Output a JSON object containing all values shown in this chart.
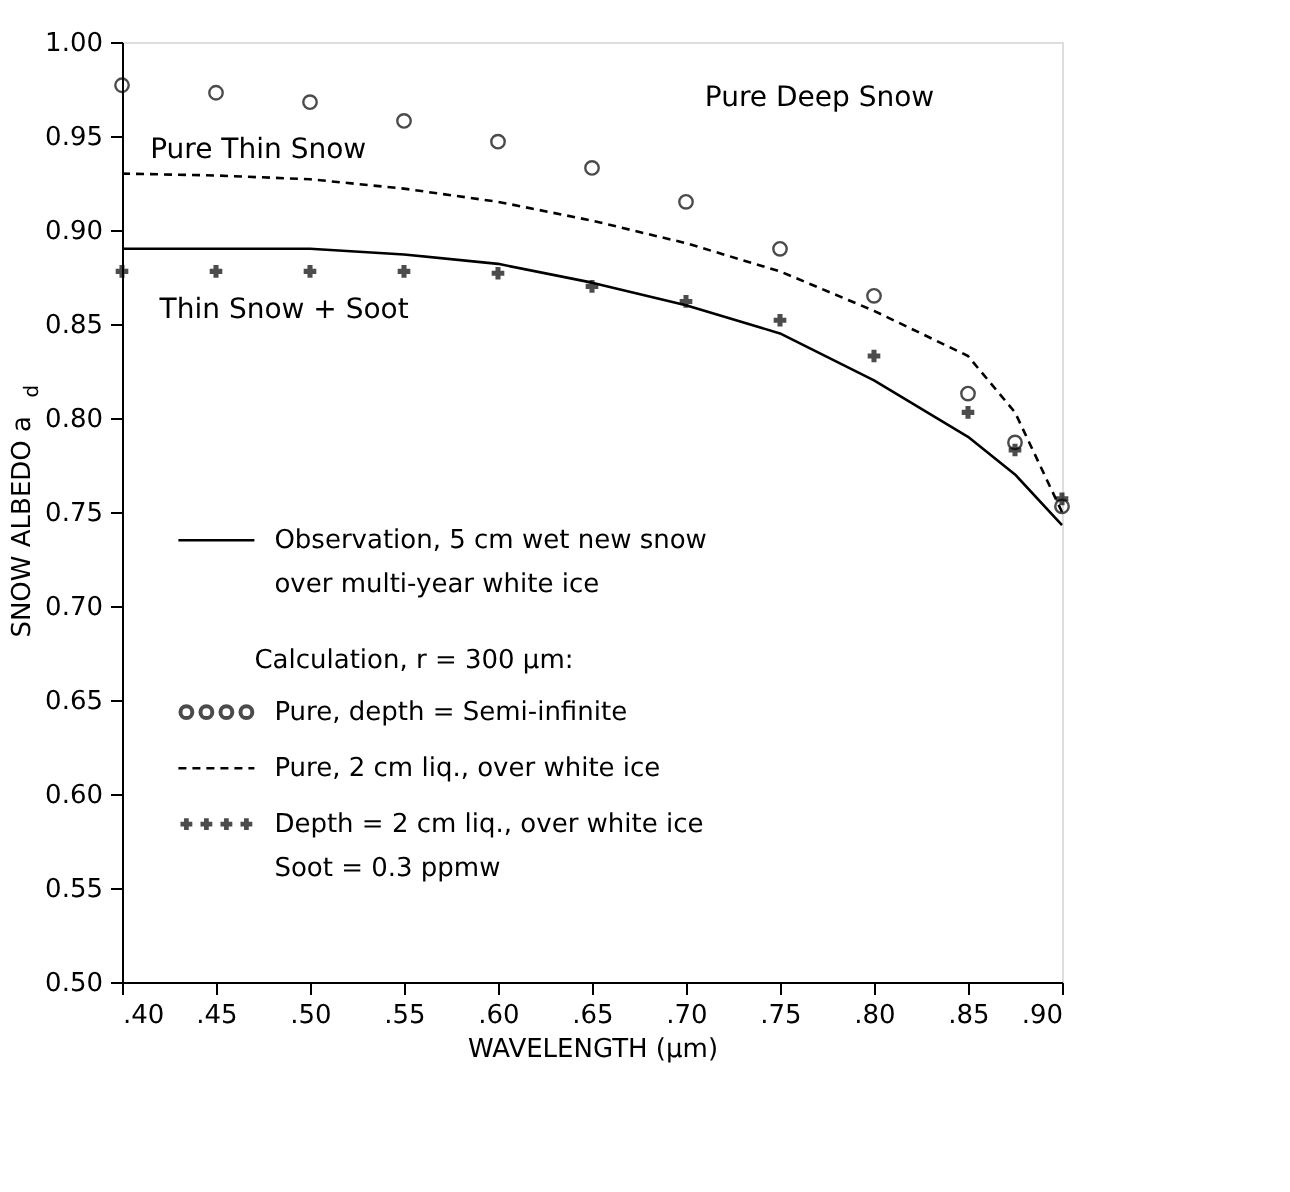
{
  "chart_data": {
    "type": "line",
    "xlabel": "WAVELENGTH (μm)",
    "ylabel": "SNOW  ALBEDO  a$_{d}$",
    "x": [
      0.4,
      0.45,
      0.5,
      0.55,
      0.6,
      0.65,
      0.7,
      0.75,
      0.8,
      0.85,
      0.875,
      0.9
    ],
    "series": [
      {
        "name": "Observation, 5 cm wet new snow\nover multi-year white ice",
        "line_style": "solid",
        "marker": "none",
        "color": "#000000",
        "values": [
          0.89,
          0.89,
          0.89,
          0.887,
          0.882,
          0.872,
          0.86,
          0.845,
          0.82,
          0.79,
          0.77,
          0.743
        ]
      },
      {
        "name": "Pure, depth = Semi-infinite",
        "type": "scatter",
        "marker": "circle",
        "color": "#000000",
        "values": [
          0.977,
          0.973,
          0.968,
          0.958,
          0.947,
          0.933,
          0.915,
          0.89,
          0.865,
          0.813,
          0.787,
          0.753
        ]
      },
      {
        "name": "Pure, 2 cm liq., over white ice",
        "line_style": "dashed",
        "marker": "none",
        "color": "#000000",
        "values": [
          0.93,
          0.929,
          0.927,
          0.922,
          0.915,
          0.905,
          0.893,
          0.878,
          0.857,
          0.833,
          0.803,
          0.75
        ]
      },
      {
        "name": "Depth = 2 cm liq., over white ice\nSoot = 0.3 ppmw",
        "type": "scatter",
        "marker": "cross",
        "color": "#000000",
        "values": [
          0.878,
          0.878,
          0.878,
          0.878,
          0.877,
          0.87,
          0.862,
          0.852,
          0.833,
          0.803,
          0.783,
          0.757
        ]
      }
    ],
    "xlim": [
      0.4,
      0.9
    ],
    "ylim": [
      0.5,
      1.0
    ],
    "xticks": [
      {
        "value": 0.4,
        "label": ".40"
      },
      {
        "value": 0.45,
        "label": ".45"
      },
      {
        "value": 0.5,
        "label": ".50"
      },
      {
        "value": 0.55,
        "label": ".55"
      },
      {
        "value": 0.6,
        "label": ".60"
      },
      {
        "value": 0.65,
        "label": ".65"
      },
      {
        "value": 0.7,
        "label": ".70"
      },
      {
        "value": 0.75,
        "label": ".75"
      },
      {
        "value": 0.8,
        "label": ".80"
      },
      {
        "value": 0.85,
        "label": ".85"
      },
      {
        "value": 0.9,
        "label": ".90"
      }
    ],
    "yticks": [
      {
        "value": 0.5,
        "label": "0.50"
      },
      {
        "value": 0.55,
        "label": "0.55"
      },
      {
        "value": 0.6,
        "label": "0.60"
      },
      {
        "value": 0.65,
        "label": "0.65"
      },
      {
        "value": 0.7,
        "label": "0.70"
      },
      {
        "value": 0.75,
        "label": "0.75"
      },
      {
        "value": 0.8,
        "label": "0.80"
      },
      {
        "value": 0.85,
        "label": "0.85"
      },
      {
        "value": 0.9,
        "label": "0.90"
      },
      {
        "value": 0.95,
        "label": "0.95"
      },
      {
        "value": 1.0,
        "label": "1.00"
      }
    ],
    "annotations": [
      "Pure Deep Snow",
      "Pure Thin Snow",
      "Thin Snow  + Soot",
      "Calculation, r = 300 μm:"
    ],
    "grid": false,
    "legend": "bottom"
  }
}
